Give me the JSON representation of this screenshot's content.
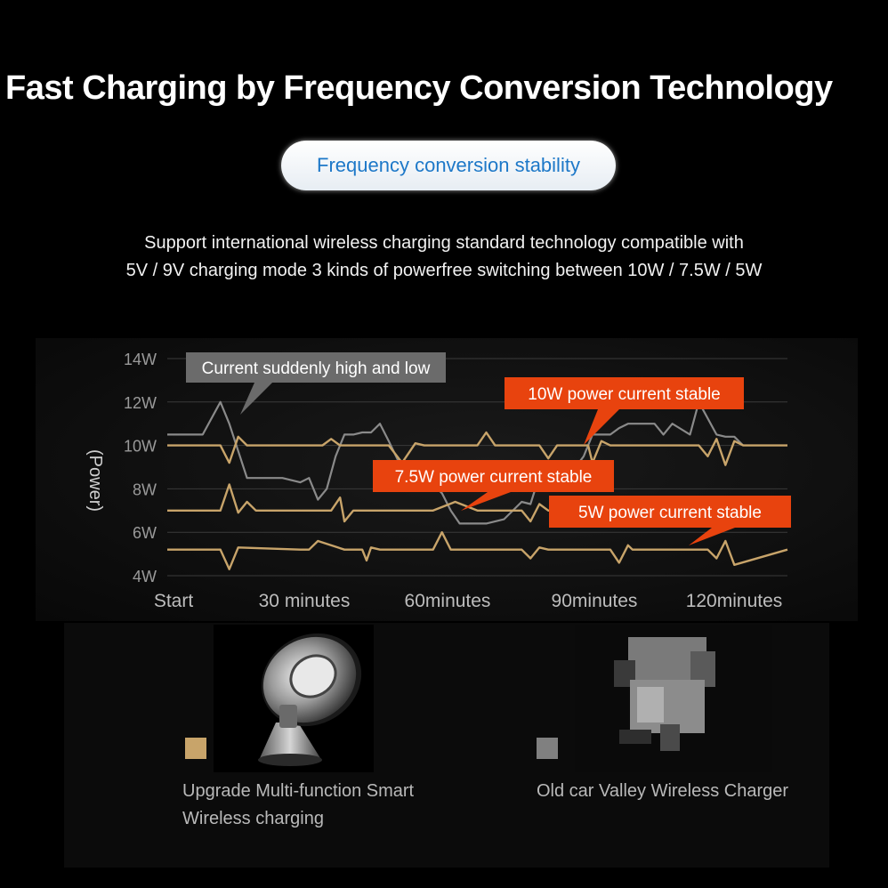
{
  "header": {
    "title": "Fast Charging by Frequency Conversion Technology",
    "pill": "Frequency conversion stability",
    "description_lines": [
      "Support international wireless charging standard technology compatible with",
      "5V / 9V charging mode 3 kinds of powerfree switching between 10W / 7.5W / 5W"
    ]
  },
  "chart_data": {
    "type": "line",
    "ylabel": "(Power)",
    "yticks": [
      "14W",
      "12W",
      "10W",
      "8W",
      "6W",
      "4W"
    ],
    "ylim": [
      4,
      14
    ],
    "xticks": [
      "Start",
      "30 minutes",
      "60minutes",
      "90minutes",
      "120minutes"
    ],
    "xlim": [
      0,
      140
    ],
    "grid": true,
    "series": [
      {
        "name": "Upgrade Multi-function Smart Wireless charging (10W)",
        "color": "#c8a46a",
        "x": [
          0,
          8,
          12,
          14,
          16,
          18,
          20,
          35,
          37,
          39,
          50,
          53,
          56,
          58,
          70,
          72,
          74,
          80,
          84,
          86,
          88,
          95,
          96,
          98,
          100,
          115,
          120,
          122,
          124,
          126,
          128,
          130,
          140
        ],
        "y": [
          10,
          10,
          10,
          9.2,
          10.4,
          10,
          10,
          10,
          10.3,
          10,
          10,
          9.2,
          10.1,
          10,
          10,
          10.6,
          10,
          10,
          10,
          9.4,
          10,
          10,
          9.2,
          10.2,
          10,
          10,
          10,
          9.5,
          10.3,
          9.1,
          10.2,
          10,
          10
        ]
      },
      {
        "name": "Upgrade Multi-function Smart Wireless charging (7.5W)",
        "color": "#c8a46a",
        "x": [
          0,
          10,
          12,
          14,
          16,
          18,
          20,
          35,
          37,
          39,
          40,
          42,
          50,
          55,
          60,
          65,
          70,
          75,
          80,
          82,
          84,
          86,
          88,
          95,
          100,
          110,
          112,
          114,
          116,
          118,
          120,
          125,
          130,
          140
        ],
        "y": [
          7,
          7,
          7,
          8.2,
          6.9,
          7.4,
          7,
          7,
          7,
          7.6,
          6.5,
          7,
          7,
          7,
          7,
          7.4,
          7,
          7,
          7,
          6.5,
          7.3,
          7,
          7,
          7,
          7,
          7,
          6.7,
          7.4,
          7,
          7.2,
          7,
          7,
          7,
          7
        ]
      },
      {
        "name": "Upgrade Multi-function Smart Wireless charging (5W)",
        "color": "#c8a46a",
        "x": [
          0,
          10,
          12,
          14,
          16,
          30,
          32,
          34,
          40,
          44,
          45,
          46,
          48,
          60,
          62,
          64,
          70,
          75,
          80,
          82,
          84,
          86,
          88,
          100,
          102,
          104,
          105,
          120,
          122,
          124,
          126,
          128,
          140
        ],
        "y": [
          5.2,
          5.2,
          5.2,
          4.3,
          5.3,
          5.2,
          5.2,
          5.6,
          5.2,
          5.2,
          4.7,
          5.3,
          5.2,
          5.2,
          6,
          5.2,
          5.2,
          5.2,
          5.2,
          4.8,
          5.3,
          5.2,
          5.2,
          5.2,
          4.6,
          5.4,
          5.2,
          5.2,
          5.2,
          4.8,
          5.6,
          4.5,
          5.2
        ]
      },
      {
        "name": "Old car Valley Wireless Charger",
        "color": "#8a8a8a",
        "x": [
          0,
          6,
          8,
          12,
          14,
          18,
          22,
          26,
          30,
          32,
          34,
          36,
          38,
          40,
          42,
          44,
          46,
          48,
          50,
          54,
          56,
          58,
          62,
          64,
          66,
          70,
          72,
          76,
          80,
          82,
          84,
          90,
          94,
          96,
          100,
          102,
          104,
          106,
          110,
          112,
          114,
          118,
          120,
          124,
          126,
          128,
          130
        ],
        "y": [
          10.5,
          10.5,
          10.5,
          12,
          11,
          8.5,
          8.5,
          8.5,
          8.3,
          8.5,
          7.5,
          8,
          9.5,
          10.5,
          10.5,
          10.6,
          10.6,
          11,
          10.2,
          8.5,
          8.5,
          8.6,
          7.8,
          7,
          6.4,
          6.4,
          6.4,
          6.6,
          7.4,
          7.3,
          8.6,
          8.4,
          9.5,
          10.5,
          10.5,
          10.8,
          11,
          11,
          11,
          10.5,
          11,
          10.5,
          12,
          10.5,
          10.4,
          10.4,
          10
        ]
      }
    ],
    "annotations": [
      "Current suddenly high and low",
      "10W power current stable",
      "7.5W power current stable",
      "5W power current stable"
    ],
    "legend": [
      {
        "label_lines": [
          "Upgrade Multi-function Smart",
          "Wireless charging"
        ],
        "color": "#c8a46a"
      },
      {
        "label_lines": [
          "Old car Valley Wireless Charger"
        ],
        "color": "#808080"
      }
    ]
  }
}
